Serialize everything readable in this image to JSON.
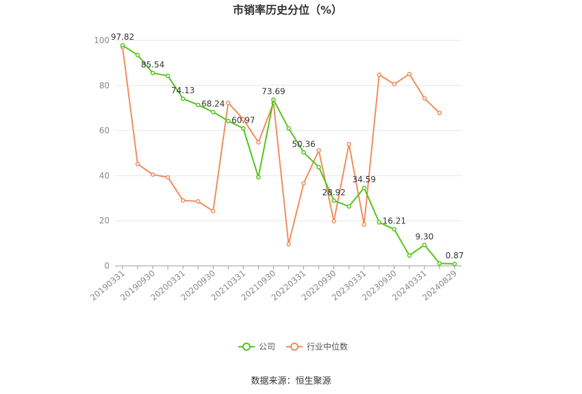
{
  "chart_data": {
    "type": "line",
    "title": "市销率历史分位（%）",
    "xlabel": "",
    "ylabel": "",
    "ylim": [
      0,
      100
    ],
    "yticks": [
      0,
      20,
      40,
      60,
      80,
      100
    ],
    "grid": true,
    "legend_position": "bottom",
    "x": [
      "20190331",
      "20190630",
      "20190930",
      "20191231",
      "20200331",
      "20200630",
      "20200930",
      "20201231",
      "20210331",
      "20210630",
      "20210930",
      "20211231",
      "20220331",
      "20220630",
      "20220930",
      "20221231",
      "20230331",
      "20230630",
      "20230930",
      "20231231",
      "20240331",
      "20240630",
      "20240829"
    ],
    "xtick_labels": [
      "20190331",
      "20190930",
      "20200331",
      "20200930",
      "20210331",
      "20210930",
      "20220331",
      "20220930",
      "20230331",
      "20230930",
      "20240331",
      "20240829"
    ],
    "series": [
      {
        "name": "公司",
        "color": "#52c41a",
        "values": [
          97.82,
          93.5,
          85.54,
          84.3,
          74.13,
          71.4,
          68.24,
          64.3,
          60.97,
          39.3,
          73.69,
          61.0,
          50.36,
          43.8,
          28.92,
          26.4,
          34.59,
          19.3,
          16.21,
          4.6,
          9.3,
          1.1,
          0.87
        ],
        "labels": {
          "0": "97.82",
          "2": "85.54",
          "4": "74.13",
          "6": "68.24",
          "8": "60.97",
          "10": "73.69",
          "12": "50.36",
          "14": "28.92",
          "16": "34.59",
          "18": "16.21",
          "20": "9.30",
          "22": "0.87"
        }
      },
      {
        "name": "行业中位数",
        "color": "#f08c5a",
        "values": [
          97.0,
          45.2,
          40.5,
          39.3,
          29.0,
          28.6,
          24.3,
          72.3,
          65.0,
          54.8,
          72.3,
          9.6,
          36.6,
          51.2,
          19.8,
          54.0,
          18.3,
          84.8,
          80.6,
          85.1,
          74.3,
          67.8,
          null
        ]
      }
    ]
  },
  "source": "数据来源：恒生聚源"
}
